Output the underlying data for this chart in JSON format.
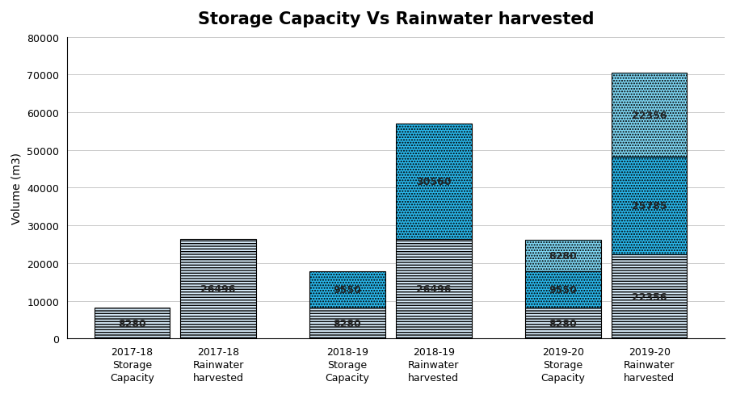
{
  "title": "Storage Capacity Vs Rainwater harvested",
  "ylabel": "Volume (m3)",
  "ylim": [
    0,
    80000
  ],
  "yticks": [
    0,
    10000,
    20000,
    30000,
    40000,
    50000,
    60000,
    70000,
    80000
  ],
  "categories": [
    "2017-18\nStorage\nCapacity",
    "2017-18\nRainwater\nharvested",
    "2018-19\nStorage\nCapacity",
    "2018-19\nRainwater\nharvested",
    "2019-20\nStorage\nCapacity",
    "2019-20\nRainwater\nharvested"
  ],
  "positions": [
    0.7,
    1.5,
    2.7,
    3.5,
    4.7,
    5.5
  ],
  "bar_width": 0.7,
  "xlim": [
    0.1,
    6.2
  ],
  "bars": [
    {
      "segments": [
        [
          8280,
          "stripe_light",
          "8280"
        ]
      ]
    },
    {
      "segments": [
        [
          26496,
          "stripe_light",
          "26496"
        ]
      ]
    },
    {
      "segments": [
        [
          8280,
          "stripe_light",
          "8280"
        ],
        [
          9550,
          "dot_cyan",
          "9550"
        ]
      ]
    },
    {
      "segments": [
        [
          26496,
          "stripe_light",
          "26496"
        ],
        [
          30560,
          "dot_cyan",
          "30560"
        ]
      ]
    },
    {
      "segments": [
        [
          8280,
          "stripe_light",
          "8280"
        ],
        [
          9550,
          "dot_cyan",
          "9550"
        ],
        [
          8280,
          "dot_cyan2",
          "8280"
        ]
      ]
    },
    {
      "segments": [
        [
          22356,
          "stripe_light",
          "22356"
        ],
        [
          25785,
          "dot_cyan",
          "25785"
        ],
        [
          22356,
          "dot_cyan2",
          "22356"
        ]
      ]
    }
  ],
  "colors": {
    "stripe_light": "#c5dff0",
    "dot_cyan": "#29b5e8",
    "dot_cyan2": "#7dd4f0"
  },
  "background": "#ffffff",
  "gridcolor": "#c8c8c8",
  "title_fontsize": 15,
  "label_fontsize": 10,
  "tick_fontsize": 9,
  "annot_fontsize": 9
}
